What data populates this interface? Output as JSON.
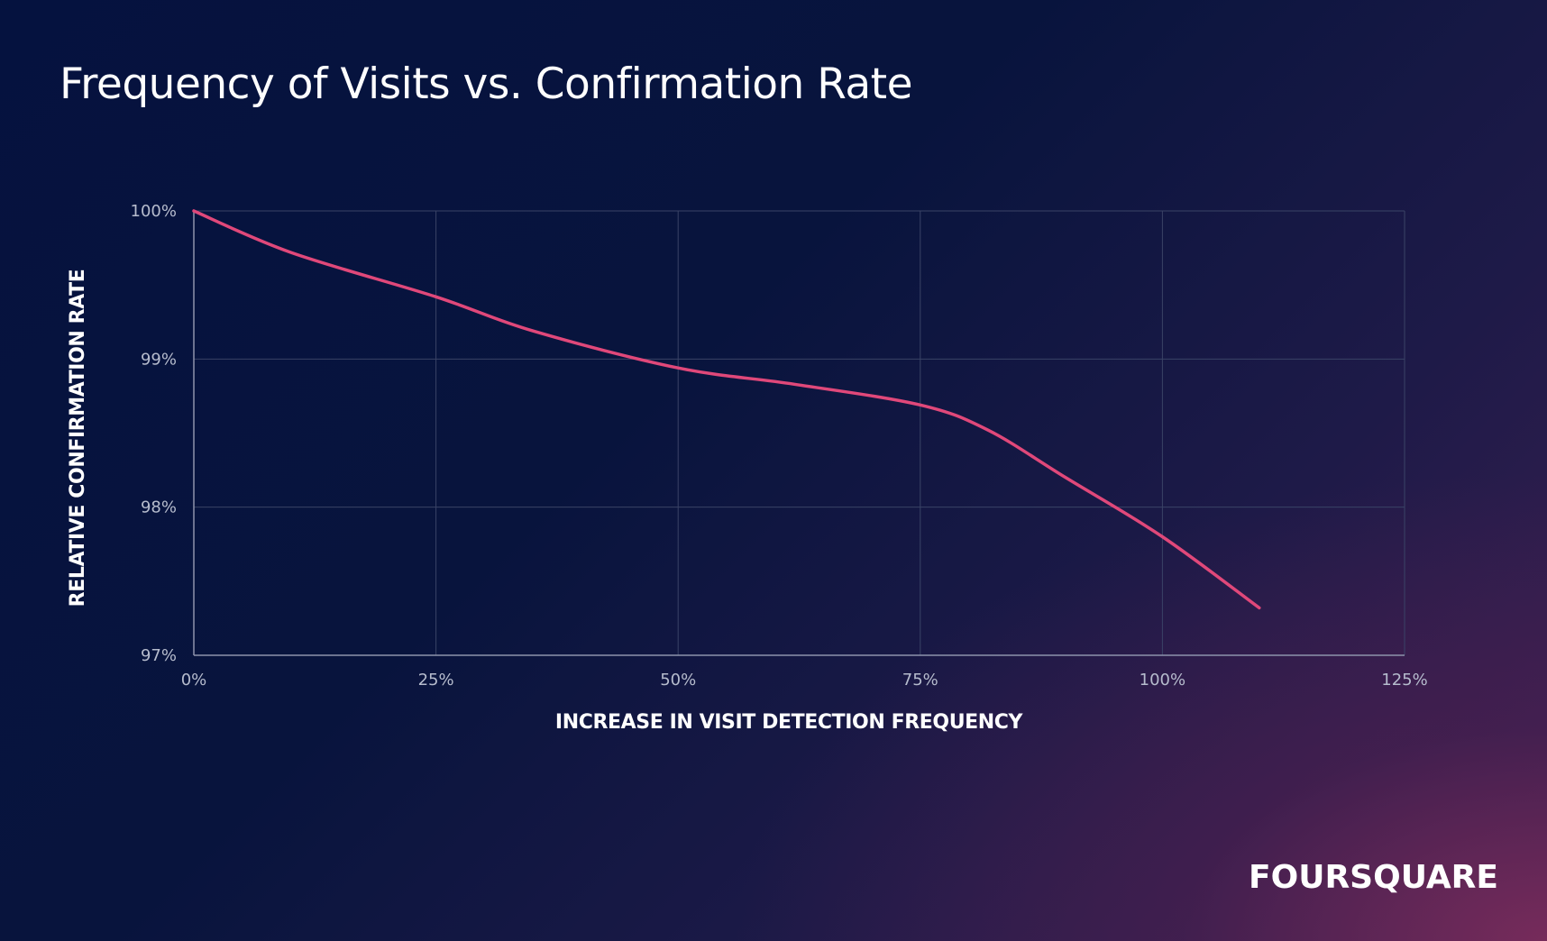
{
  "title": "Frequency of Visits vs. Confirmation Rate",
  "brand": "FOURSQUARE",
  "colors": {
    "background_start": "#05123f",
    "background_end": "#6b2b5c",
    "line": "#e0487a",
    "grid": "#3a4366",
    "axis": "#8d93ac",
    "text": "#ffffff"
  },
  "chart_data": {
    "type": "line",
    "title": "Frequency of Visits vs. Confirmation Rate",
    "xlabel": "INCREASE IN VISIT DETECTION FREQUENCY",
    "ylabel": "RELATIVE CONFIRMATION RATE",
    "xlim": [
      0,
      125
    ],
    "ylim": [
      97,
      100
    ],
    "x_ticks": [
      0,
      25,
      50,
      75,
      100,
      125
    ],
    "y_ticks": [
      97,
      98,
      99,
      100
    ],
    "x_tick_labels": [
      "0%",
      "25%",
      "50%",
      "75%",
      "100%",
      "125%"
    ],
    "y_tick_labels": [
      "97%",
      "98%",
      "99%",
      "100%"
    ],
    "grid": true,
    "series": [
      {
        "x": [
          0,
          10,
          25,
          35,
          50,
          62,
          75,
          82,
          90,
          100,
          110
        ],
        "y": [
          100,
          99.72,
          99.42,
          99.19,
          98.94,
          98.83,
          98.69,
          98.52,
          98.2,
          97.8,
          97.32
        ]
      }
    ]
  }
}
